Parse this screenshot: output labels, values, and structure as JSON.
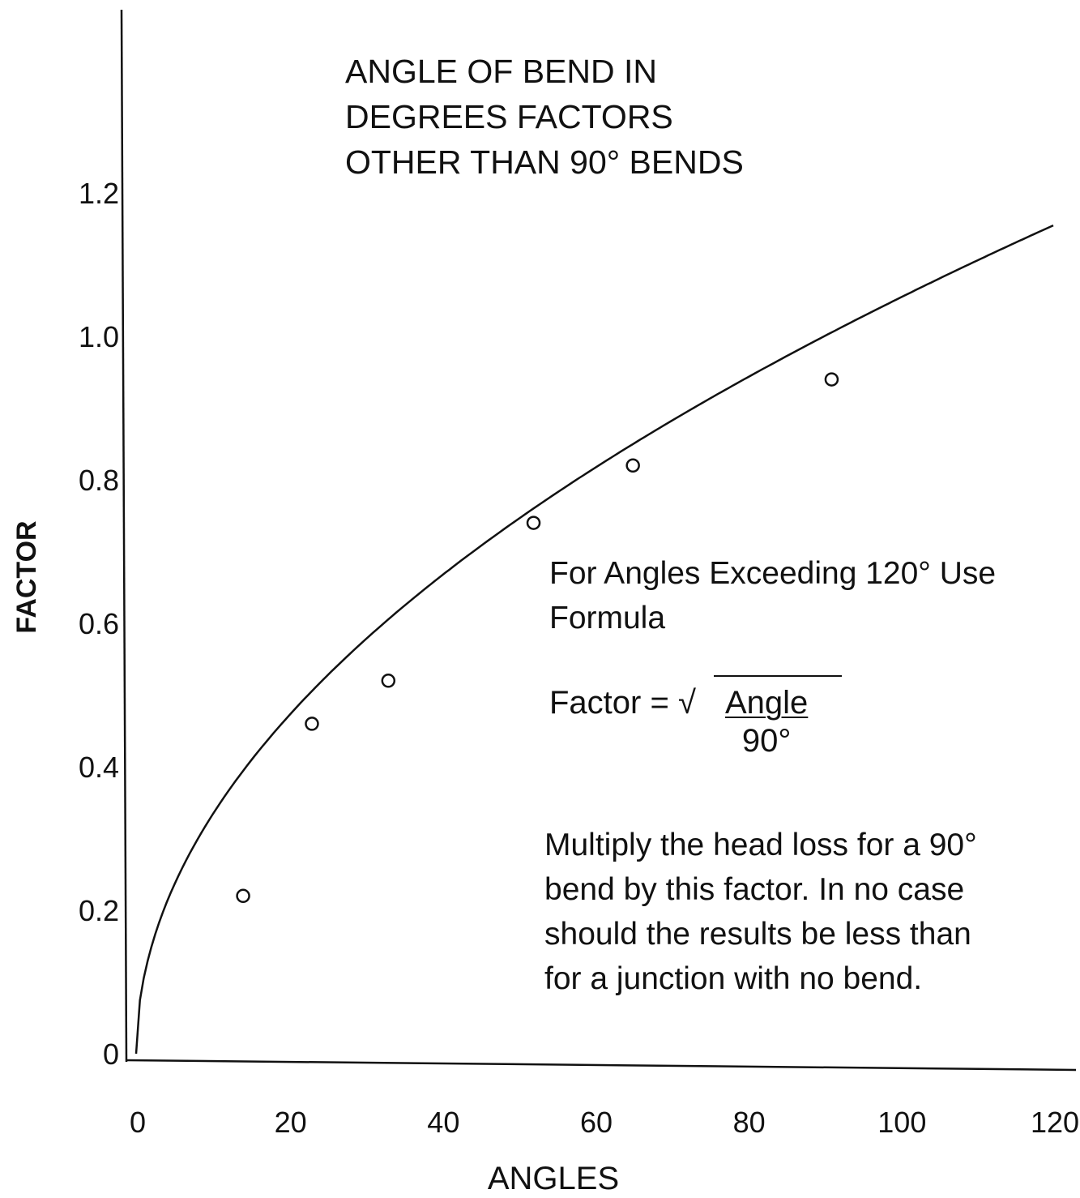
{
  "chart_data": {
    "type": "scatter",
    "title_lines": [
      "ANGLE OF BEND IN",
      "DEGREES FACTORS",
      "OTHER THAN 90° BENDS"
    ],
    "xlabel": "ANGLES",
    "ylabel": "FACTOR",
    "xlim": [
      0,
      120
    ],
    "ylim": [
      0,
      1.2
    ],
    "x_ticks": [
      "0",
      "20",
      "40",
      "60",
      "80",
      "100",
      "120"
    ],
    "y_ticks": [
      "0",
      "0.2",
      "0.4",
      "0.6",
      "0.8",
      "1.0",
      "1.2"
    ],
    "grid": false,
    "series": [
      {
        "marker": "circle",
        "x": [
          14,
          23,
          33,
          52,
          65,
          91
        ],
        "y": [
          0.22,
          0.46,
          0.52,
          0.74,
          0.82,
          0.94
        ]
      },
      {
        "style": "line",
        "function": "sqrt(Angle/90)",
        "x_range": [
          0,
          120
        ]
      }
    ],
    "annotations": {
      "note_lines": [
        "For Angles Exceeding 120° Use",
        "Formula"
      ],
      "formula_lhs": "Factor = √",
      "formula_numerator": "Angle",
      "formula_denominator": "90°",
      "instruction_lines": [
        "Multiply the head loss for a 90°",
        "bend by this factor.  In no case",
        "should the results be less than",
        "for a junction with no bend."
      ]
    }
  },
  "colors": {
    "ink": "#111111",
    "background": "#ffffff"
  }
}
